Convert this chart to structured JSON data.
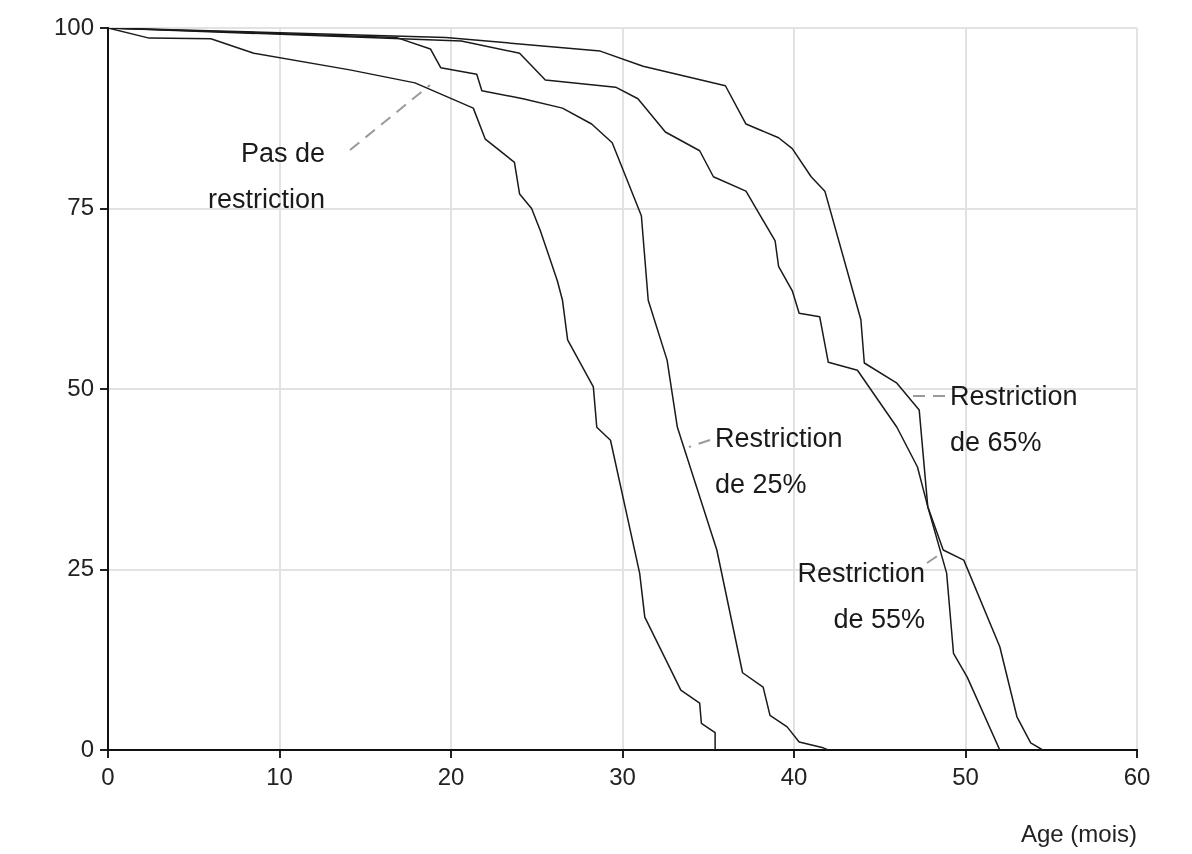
{
  "chart_data": {
    "type": "line",
    "xlabel": "Age (mois)",
    "xlim": [
      0,
      60
    ],
    "xticks": [
      0,
      10,
      20,
      30,
      40,
      50,
      60
    ],
    "ylim": [
      0,
      100
    ],
    "yticks": [
      0,
      25,
      50,
      75,
      100
    ],
    "grid": true,
    "legend": false,
    "marker": "none",
    "line_style": "solid",
    "series": [
      {
        "name": "Pas de restriction",
        "color": "#1a1a1a",
        "x": [
          0,
          2.4,
          6,
          8.5,
          14.1,
          17.9,
          21.3,
          22,
          23.7,
          24,
          24.7,
          25.2,
          26.2,
          26.5,
          26.8,
          28.3,
          28.5,
          29.3,
          31,
          31.3,
          33.4,
          34.5,
          34.6,
          35.4,
          35.4
        ],
        "values": [
          100,
          98.6,
          98.5,
          96.5,
          94.2,
          92.4,
          88.9,
          84.6,
          81.4,
          77,
          75,
          72,
          65,
          62.3,
          56.8,
          50.3,
          44.7,
          42.9,
          24.5,
          18.4,
          8.3,
          6.5,
          3.7,
          2.4,
          0
        ]
      },
      {
        "name": "Restriction de 25%",
        "color": "#1a1a1a",
        "x": [
          0,
          16.8,
          18.8,
          19.4,
          21.5,
          21.8,
          24.2,
          26.5,
          28.2,
          29.4,
          31.1,
          31.5,
          32.6,
          33.2,
          35.5,
          37,
          38.2,
          38.6,
          39.6,
          40.3,
          41.7,
          42
        ],
        "values": [
          100,
          98.7,
          97.1,
          94.5,
          93.6,
          91.3,
          90.2,
          88.9,
          86.7,
          84.1,
          74,
          62.3,
          54,
          44.7,
          27.7,
          10.7,
          8.7,
          4.8,
          3.2,
          1.1,
          0.3,
          0
        ]
      },
      {
        "name": "Restriction de 55%",
        "color": "#1a1a1a",
        "x": [
          0,
          20.6,
          24,
          25.5,
          29.6,
          30.9,
          32.5,
          34.5,
          35.3,
          37.2,
          38.9,
          39.1,
          39.9,
          40.3,
          41.5,
          42,
          43.7,
          46,
          47.2,
          47.8,
          48.9,
          49.3,
          50.1,
          52
        ],
        "values": [
          100,
          98.2,
          96.5,
          92.8,
          91.8,
          90.2,
          85.6,
          83,
          79.4,
          77.4,
          70.5,
          67,
          63.6,
          60.5,
          60,
          53.7,
          52.6,
          44.7,
          39.2,
          33.7,
          24.5,
          13.4,
          10.1,
          0
        ]
      },
      {
        "name": "Restriction de 65%",
        "color": "#1a1a1a",
        "x": [
          0,
          19.7,
          28.7,
          31.2,
          36,
          37.2,
          39.1,
          39.9,
          41,
          41.8,
          43.9,
          44.1,
          46,
          47.3,
          47.8,
          48.7,
          49.9,
          52,
          53,
          53.8,
          54.5
        ],
        "values": [
          100,
          98.7,
          96.8,
          94.7,
          92,
          86.7,
          84.8,
          83.3,
          79.4,
          77.4,
          59.6,
          53.6,
          50.8,
          47.1,
          33.7,
          27.7,
          26.3,
          14.3,
          4.6,
          1,
          0
        ]
      }
    ]
  }
}
